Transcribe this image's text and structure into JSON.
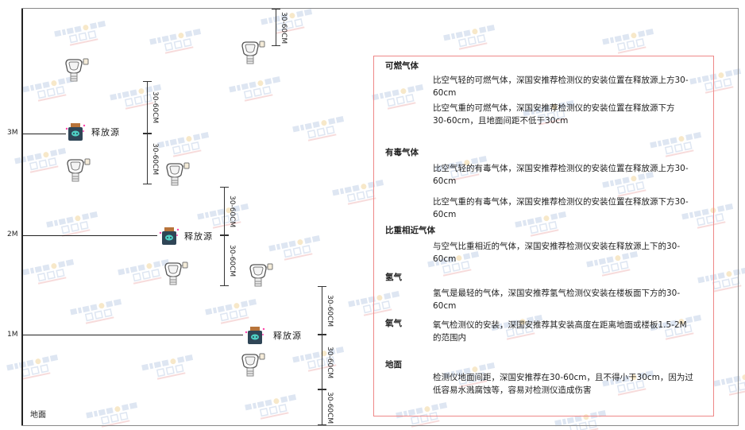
{
  "watermark": {
    "brand": "SINGOAN",
    "cn": "深国安"
  },
  "levels": {
    "m3": "3M",
    "m2": "2M",
    "m1": "1M",
    "ground": "地面"
  },
  "source_label": "释放源",
  "dimension_label": "30-60CM",
  "colors": {
    "border": "#e88888",
    "axis": "#222222",
    "watermark": "#c9d6ea"
  },
  "legend": [
    {
      "title": "可燃气体",
      "items": [
        "比空气轻的可燃气体，深国安推荐检测仪的安装位置在释放源上方30-60cm",
        "比空气重的可燃气体，深国安推荐检测仪的安装位置在释放源下方30-60cm，且地面间距不低于30cm"
      ]
    },
    {
      "title": "有毒气体",
      "items": [
        "比空气轻的有毒气体，深国安推荐检测仪的安装位置在释放源上方30-60cm",
        "比空气重的有毒气体，深国安推荐检测仪的安装位置在释放源下方30-60cm"
      ]
    },
    {
      "title": "比重相近气体",
      "items": [
        "与空气比重相近的气体，深国安推荐检测仪安装在释放源上下的30-60cm"
      ]
    },
    {
      "title": "氢气",
      "items": [
        "氢气是最轻的气体，深国安推荐氢气检测仪安装在楼板面下方的30-60cm"
      ]
    },
    {
      "title": "氧气",
      "items": [
        "氧气检测仪的安装，深国安推荐其安装高度在距离地面或楼板1.5-2M的范围内"
      ]
    },
    {
      "title": "地面",
      "items": [
        "检测仪地面间距，深国安推荐在30-60cm，且不得小于30cm，因为过低容易水溅腐蚀等，容易对检测仪造成伤害"
      ]
    }
  ]
}
